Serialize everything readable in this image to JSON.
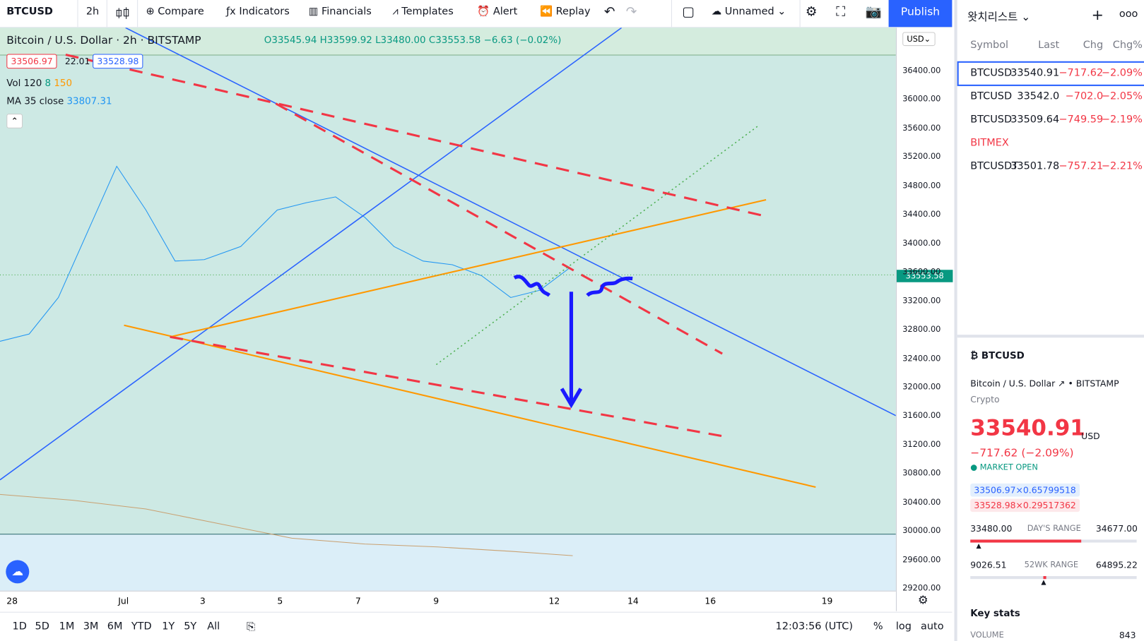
{
  "toolbar": {
    "symbol": "BTCUSD",
    "interval": "2h",
    "items": [
      "Compare",
      "Indicators",
      "Financials",
      "Templates",
      "Alert",
      "Replay"
    ],
    "layout": "Unnamed",
    "publish": "Publish"
  },
  "legend": {
    "title": "Bitcoin / U.S. Dollar",
    "interval": "2h",
    "exchange": "BITSTAMP",
    "open": "O33545.94",
    "high": "H33599.92",
    "low": "L33480.00",
    "close": "C33553.58",
    "change": "−6.63 (−0.02%)",
    "bid": "33506.97",
    "spread": "22.01",
    "ask": "33528.98",
    "vol_label": "Vol 120",
    "vol_a": "8",
    "vol_b": "150",
    "ma_label": "MA 35 close",
    "ma_value": "33807.31"
  },
  "price_axis": {
    "currency": "USD",
    "ticks": [
      "36400.00",
      "36000.00",
      "35600.00",
      "35200.00",
      "34800.00",
      "34400.00",
      "34000.00",
      "33600.00",
      "33200.00",
      "32800.00",
      "32400.00",
      "32000.00",
      "31600.00",
      "31200.00",
      "30800.00",
      "30400.00",
      "30000.00",
      "29600.00",
      "29200.00"
    ],
    "last": "33553.58"
  },
  "time_axis": [
    "28",
    "Jul",
    "3",
    "5",
    "7",
    "9",
    "12",
    "14",
    "16",
    "19"
  ],
  "bottom_bar": {
    "ranges": [
      "1D",
      "5D",
      "1M",
      "3M",
      "6M",
      "YTD",
      "1Y",
      "5Y",
      "All"
    ],
    "clock": "12:03:56 (UTC)",
    "options": [
      "%",
      "log",
      "auto"
    ]
  },
  "watchlist": {
    "title": "왓치리스트",
    "columns": [
      "Symbol",
      "Last",
      "Chg",
      "Chg%"
    ],
    "rows": [
      [
        "BTCUSD",
        "33540.91",
        "−717.62",
        "−2.09%"
      ],
      [
        "BTCUSD",
        "33542.0",
        "−702.0",
        "−2.05%"
      ],
      [
        "BTCUSD",
        "33509.64",
        "−749.59",
        "−2.19%"
      ]
    ],
    "section": "BITMEX",
    "section_rows": [
      [
        "BTCUSDT",
        "33501.78",
        "−757.21",
        "−2.21%"
      ]
    ]
  },
  "details": {
    "symbol": "BTCUSD",
    "name": "Bitcoin / U.S. Dollar",
    "exchange": "BITSTAMP",
    "kind": "Crypto",
    "price": "33540.91",
    "currency": "USD",
    "change": "−717.62 (−2.09%)",
    "status": "MARKET OPEN",
    "bid": "33506.97×0.65799518",
    "ask": "33528.98×0.29517362",
    "day_low": "33480.00",
    "day_label": "DAY'S RANGE",
    "day_high": "34677.00",
    "wk_low": "9026.51",
    "wk_label": "52WK RANGE",
    "wk_high": "64895.22",
    "stats": "Key stats",
    "volume_label": "VOLUME",
    "volume": "843"
  }
}
